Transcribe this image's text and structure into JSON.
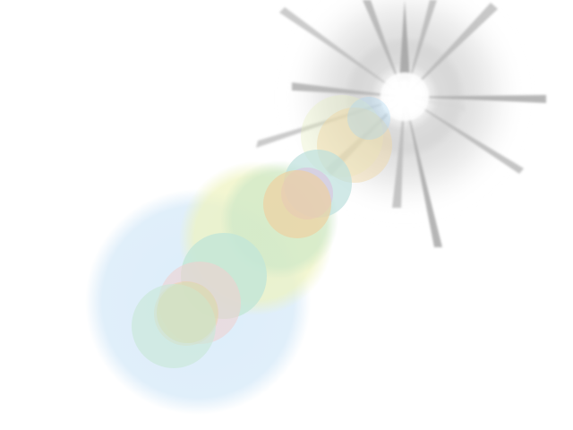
{
  "scene": {
    "description_visible_text": "",
    "palette": {
      "background": "#ffffff",
      "halo": "#bdbdbd",
      "core": "#ffffff",
      "ray": "#9e9e9e",
      "blue": "#d7e9f8",
      "yellow": "#f3efb8",
      "green": "#cfe7c0",
      "teal": "#bfe3da",
      "peach": "#efc9a8",
      "purple": "#d7c1df",
      "pink": "#efd0cf"
    },
    "elements": {
      "sun": "lens-flare-sun",
      "rays": "starburst-rays",
      "orbs": "lens-flare-orbs"
    }
  }
}
